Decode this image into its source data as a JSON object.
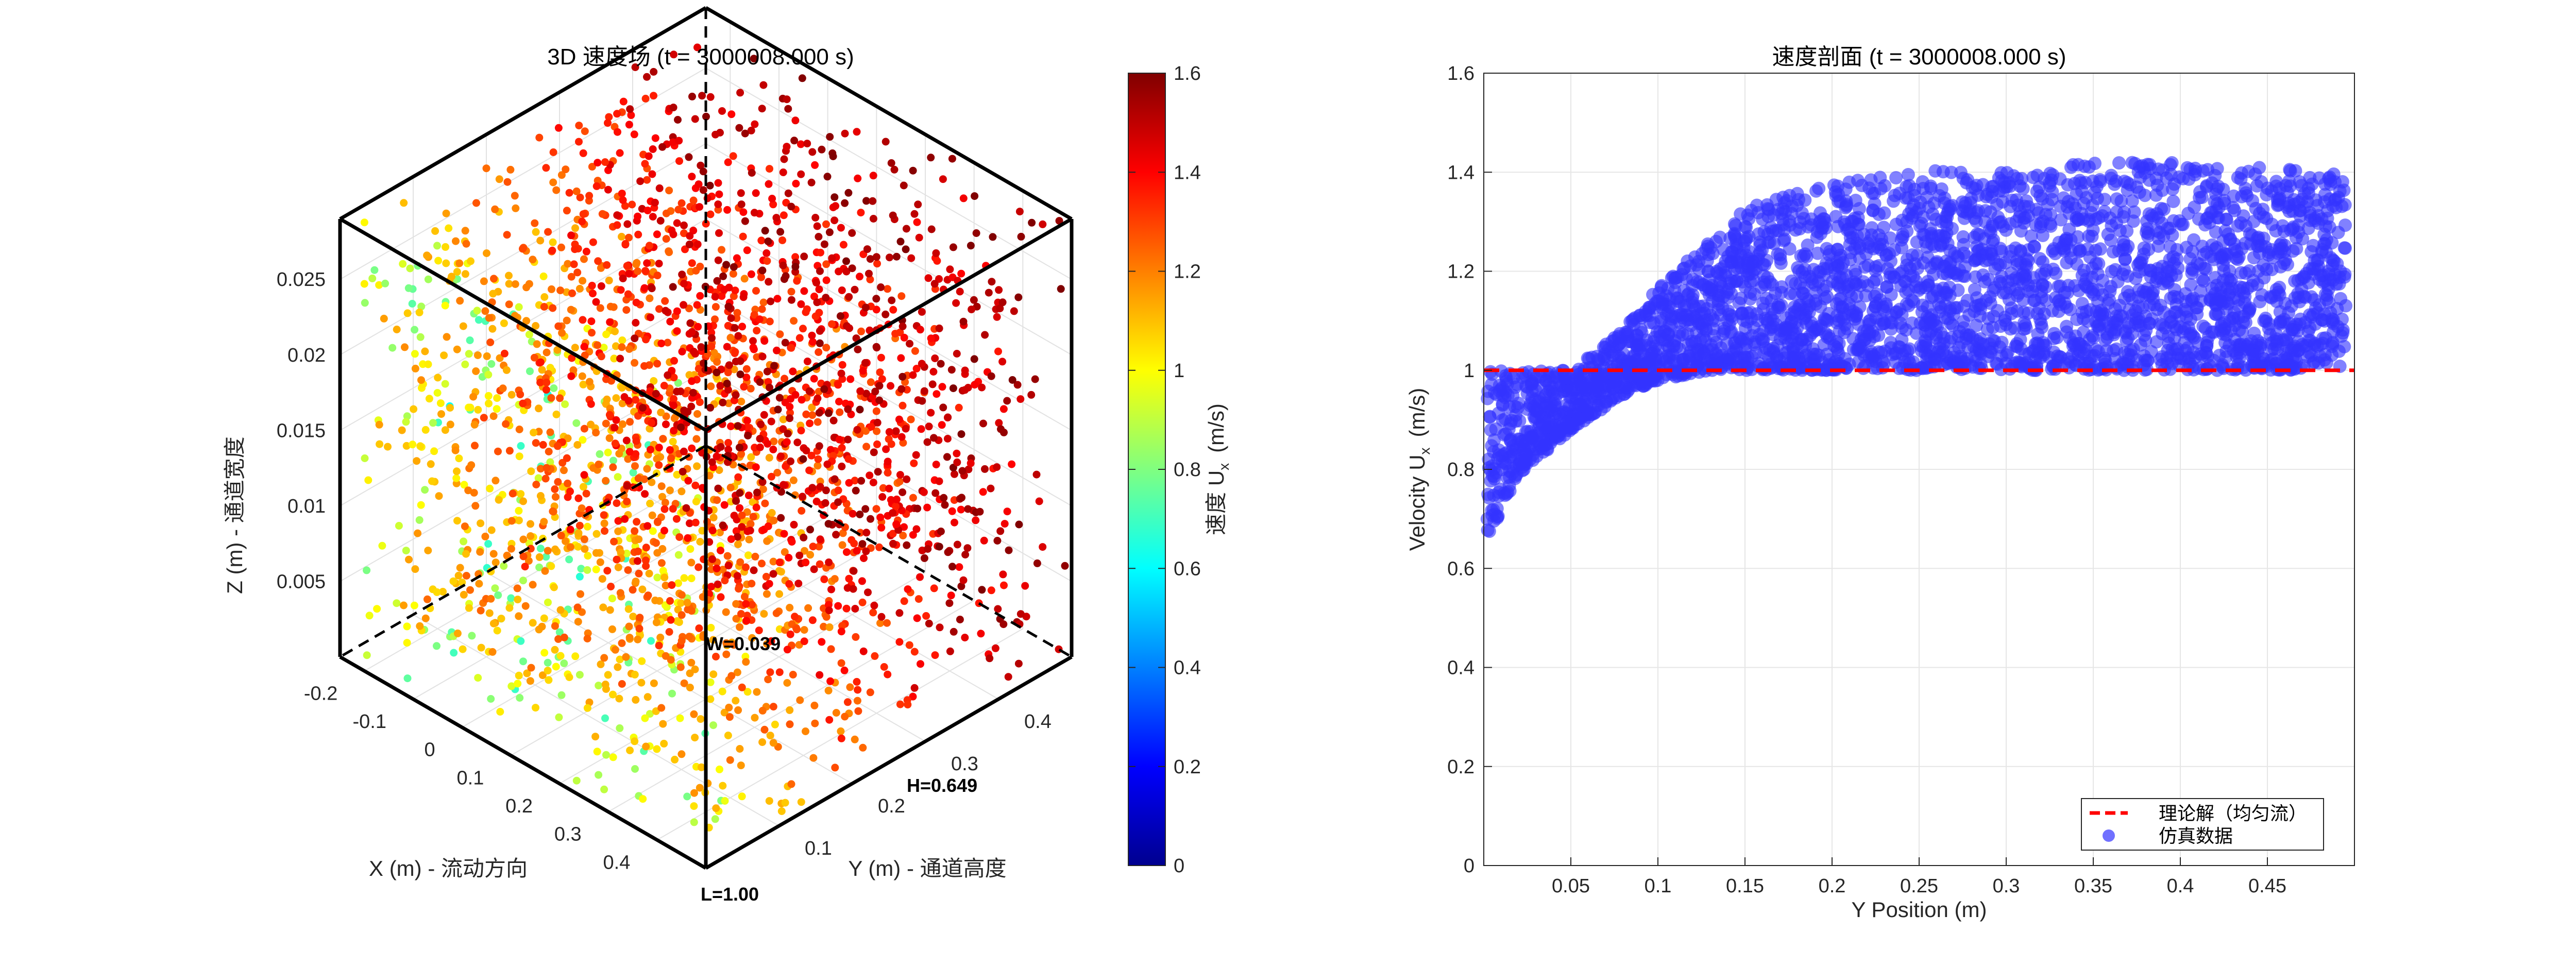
{
  "chart_data": [
    {
      "type": "scatter3d",
      "title": "3D 速度场 (t = 3000008.000 s)",
      "xlabel": "X (m) - 流动方向",
      "ylabel": "Y (m) - 通道高度",
      "zlabel": "Z (m) - 通道宽度",
      "xlim": [
        -0.25,
        0.5
      ],
      "ylim": [
        0,
        0.5
      ],
      "zlim": [
        0,
        0.029
      ],
      "xticks": [
        "-0.2",
        "-0.1",
        "0",
        "0.1",
        "0.2",
        "0.3",
        "0.4"
      ],
      "yticks": [
        "0.1",
        "0.2",
        "0.3",
        "0.4"
      ],
      "zticks": [
        "0.005",
        "0.01",
        "0.015",
        "0.02",
        "0.025"
      ],
      "annotations": [
        "W=0.039",
        "H=0.649",
        "L=1.00"
      ],
      "colorbar": {
        "label": "速度 U",
        "label_sub": "x",
        "label_unit": "(m/s)",
        "range": [
          0,
          1.6
        ],
        "ticks": [
          "0",
          "0.2",
          "0.4",
          "0.6",
          "0.8",
          "1",
          "1.2",
          "1.4",
          "1.6"
        ],
        "colormap": "jet"
      },
      "grid": true,
      "points": [
        {
          "x": -0.2,
          "y": 0.02,
          "z": 0.025,
          "u": 1.02
        },
        {
          "x": 0.0,
          "y": 0.25,
          "z": 0.014,
          "u": 1.15
        },
        {
          "x": 0.3,
          "y": 0.45,
          "z": 0.005,
          "u": 1.45
        },
        {
          "x": -0.1,
          "y": 0.05,
          "z": 0.018,
          "u": 0.6
        },
        {
          "x": 0.4,
          "y": 0.3,
          "z": 0.02,
          "u": 1.3
        }
      ]
    },
    {
      "type": "scatter",
      "title": "速度剖面 (t = 3000008.000 s)",
      "xlabel": "Y Position (m)",
      "ylabel": "Velocity  U",
      "ylabel_sub": "x",
      "ylabel_unit": "(m/s)",
      "xlim": [
        0,
        0.5
      ],
      "ylim": [
        0,
        1.6
      ],
      "xticks": [
        "0.05",
        "0.1",
        "0.15",
        "0.2",
        "0.25",
        "0.3",
        "0.35",
        "0.4",
        "0.45"
      ],
      "yticks": [
        "0",
        "0.2",
        "0.4",
        "0.6",
        "0.8",
        "1",
        "1.2",
        "1.4",
        "1.6"
      ],
      "grid": true,
      "legend_position": "bottom-right",
      "series": [
        {
          "name": "理论解（均匀流）",
          "kind": "dashed-line",
          "color": "#ff0000",
          "x": [
            0.0,
            0.5
          ],
          "y": [
            1.0,
            1.0
          ]
        },
        {
          "name": "仿真数据",
          "kind": "marker",
          "color": "#3333ff",
          "x": [
            0.0,
            0.01,
            0.02,
            0.05,
            0.08,
            0.1,
            0.13,
            0.15,
            0.2,
            0.25,
            0.3,
            0.35,
            0.4,
            0.45,
            0.5
          ],
          "y_min": [
            0.63,
            0.72,
            0.79,
            0.88,
            0.95,
            0.98,
            1.0,
            1.0,
            1.0,
            1.0,
            1.0,
            1.0,
            1.0,
            1.0,
            1.0
          ],
          "y_max": [
            1.0,
            1.0,
            1.0,
            1.0,
            1.08,
            1.17,
            1.26,
            1.33,
            1.38,
            1.41,
            1.4,
            1.42,
            1.42,
            1.41,
            1.4
          ]
        }
      ]
    }
  ]
}
